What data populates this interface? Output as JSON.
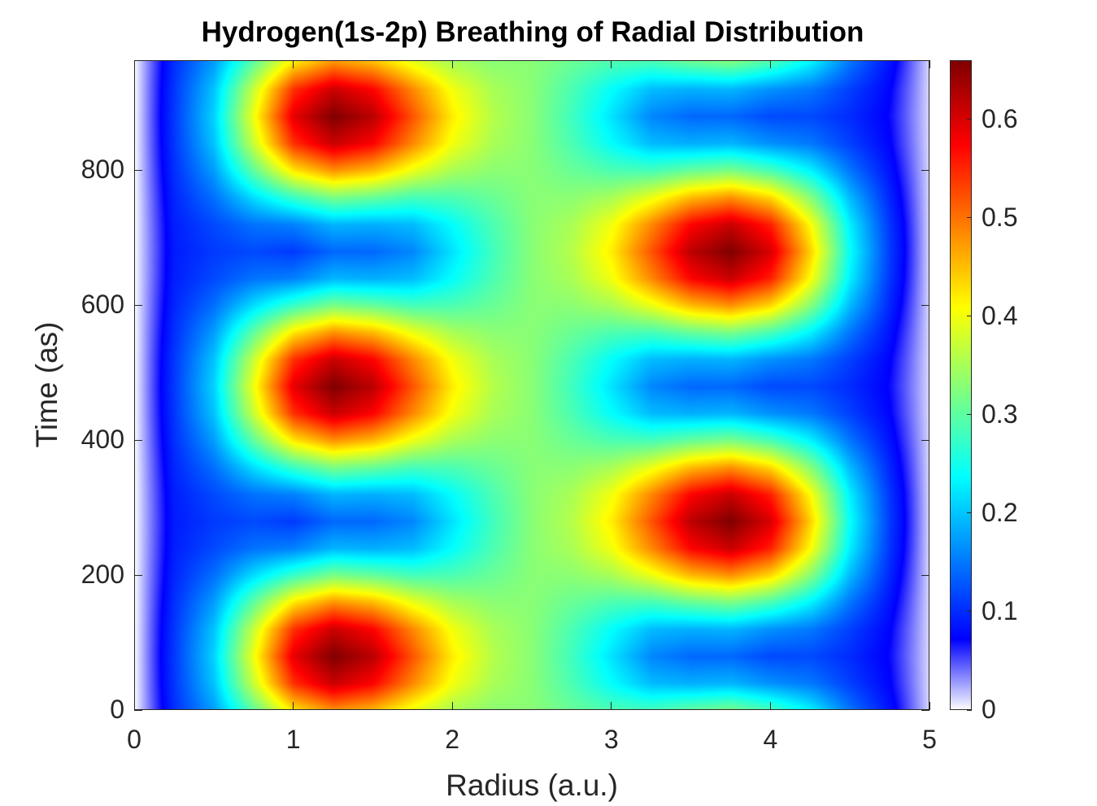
{
  "chart_data": {
    "type": "heatmap",
    "title": "Hydrogen(1s-2p) Breathing of Radial Distribution",
    "xlabel": "Radius (a.u.)",
    "ylabel": "Time (as)",
    "xlim": [
      0,
      5
    ],
    "ylim": [
      0,
      963
    ],
    "xticks": [
      "0",
      "1",
      "2",
      "3",
      "4",
      "5"
    ],
    "yticks": [
      "0",
      "200",
      "400",
      "600",
      "800"
    ],
    "colorbar": {
      "range": [
        0,
        0.66
      ],
      "ticks": [
        "0",
        "0.1",
        "0.2",
        "0.3",
        "0.4",
        "0.5",
        "0.6"
      ],
      "colormap": "jet with white at zero"
    },
    "grid": false,
    "x": [
      0,
      0.25,
      0.5,
      0.75,
      1.0,
      1.25,
      1.5,
      1.75,
      2.0,
      2.25,
      2.5,
      2.75,
      3.0,
      3.25,
      3.5,
      3.75,
      4.0,
      4.25,
      4.5,
      4.75,
      5.0
    ],
    "y": [
      0,
      40,
      80,
      120,
      160,
      200,
      240,
      280,
      320,
      360,
      400,
      440,
      480,
      520,
      560,
      600,
      640,
      680,
      720,
      760,
      800,
      840,
      880,
      920,
      960
    ],
    "z_rows_pattern": {
      "a": [
        0,
        0.103,
        0.175,
        0.303,
        0.424,
        0.48,
        0.454,
        0.396,
        0.351,
        0.332,
        0.33,
        0.308,
        0.289,
        0.284,
        0.306,
        0.32,
        0.286,
        0.231,
        0.148,
        0.084,
        0.01
      ],
      "b": [
        0,
        0.108,
        0.2,
        0.373,
        0.544,
        0.61,
        0.574,
        0.486,
        0.401,
        0.352,
        0.33,
        0.288,
        0.239,
        0.194,
        0.186,
        0.19,
        0.166,
        0.151,
        0.113,
        0.074,
        0.01
      ],
      "c": [
        0,
        0.11,
        0.21,
        0.4,
        0.59,
        0.66,
        0.62,
        0.52,
        0.42,
        0.36,
        0.33,
        0.28,
        0.22,
        0.16,
        0.14,
        0.14,
        0.12,
        0.12,
        0.1,
        0.07,
        0.01
      ],
      "d": [
        0,
        0.097,
        0.145,
        0.217,
        0.276,
        0.32,
        0.306,
        0.284,
        0.289,
        0.308,
        0.33,
        0.332,
        0.351,
        0.396,
        0.454,
        0.48,
        0.434,
        0.329,
        0.192,
        0.096,
        0.01
      ],
      "e": [
        0,
        0.092,
        0.12,
        0.147,
        0.156,
        0.19,
        0.186,
        0.194,
        0.239,
        0.288,
        0.33,
        0.352,
        0.401,
        0.486,
        0.574,
        0.61,
        0.554,
        0.409,
        0.227,
        0.106,
        0.01
      ],
      "f": [
        0,
        0.09,
        0.11,
        0.12,
        0.11,
        0.14,
        0.14,
        0.16,
        0.22,
        0.28,
        0.33,
        0.36,
        0.42,
        0.52,
        0.62,
        0.66,
        0.6,
        0.44,
        0.24,
        0.11,
        0.01
      ]
    },
    "z_row_order": [
      "a",
      "b",
      "c",
      "b",
      "a",
      "d",
      "e",
      "f",
      "e",
      "d",
      "a",
      "b",
      "c",
      "b",
      "a",
      "d",
      "e",
      "f",
      "e",
      "d",
      "a",
      "b",
      "c",
      "b",
      "a"
    ]
  }
}
